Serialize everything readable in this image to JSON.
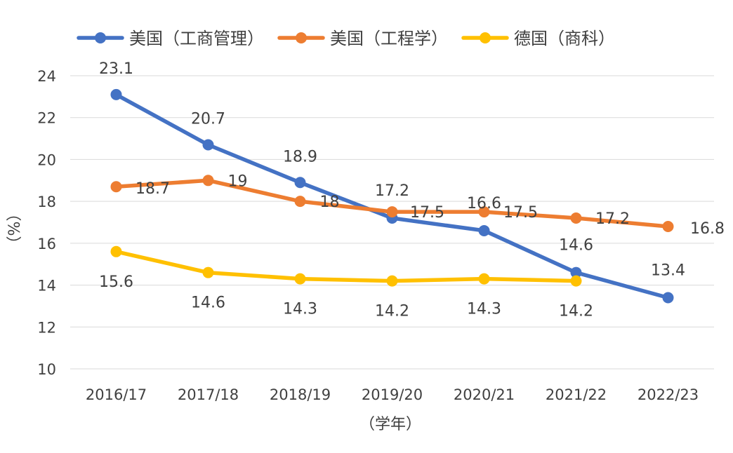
{
  "chart_data": {
    "type": "line",
    "categories": [
      "2016/17",
      "2017/18",
      "2018/19",
      "2019/20",
      "2020/21",
      "2021/22",
      "2022/23"
    ],
    "series": [
      {
        "name": "美国（工商管理）",
        "color": "#4472C4",
        "values": [
          23.1,
          20.7,
          18.9,
          17.2,
          16.6,
          14.6,
          13.4
        ]
      },
      {
        "name": "美国（工程学）",
        "color": "#ED7D31",
        "values": [
          18.7,
          19,
          18,
          17.5,
          17.5,
          17.2,
          16.8
        ]
      },
      {
        "name": "德国（商科）",
        "color": "#FFC000",
        "values": [
          15.6,
          14.6,
          14.3,
          14.2,
          14.3,
          14.2,
          null
        ]
      }
    ],
    "xlabel": "（学年）",
    "ylabel": "（%）",
    "ylim": [
      10,
      24
    ],
    "yticks": [
      10,
      12,
      14,
      16,
      18,
      20,
      22,
      24
    ],
    "grid": true,
    "legend": "top"
  }
}
